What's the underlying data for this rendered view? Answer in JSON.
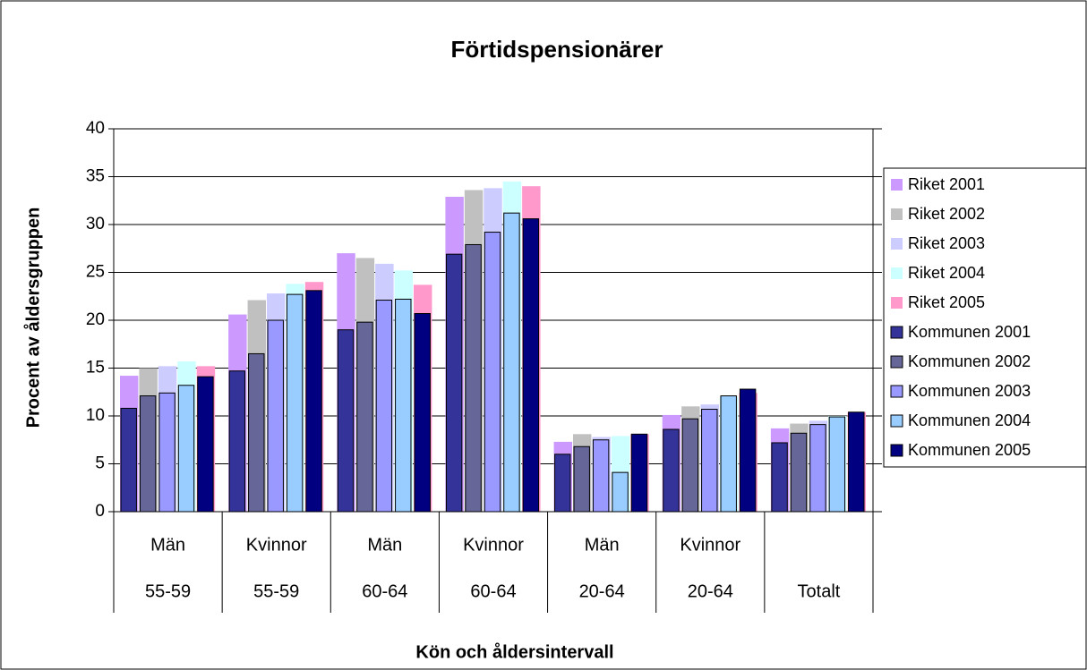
{
  "chart_data": {
    "type": "bar",
    "title": "Förtidspensionärer",
    "y_label": "Procent av åldersgruppen",
    "x_label": "Kön och åldersintervall",
    "categories": [
      "Män",
      "Kvinnor",
      "Män",
      "Kvinnor",
      "Män",
      "Kvinnor",
      null
    ],
    "groups": [
      "55-59",
      "55-59",
      "60-64",
      "60-64",
      "20-64",
      "20-64",
      "Totalt"
    ],
    "ylim": [
      0,
      40
    ],
    "yticks": [
      0,
      5,
      10,
      15,
      20,
      25,
      30,
      35,
      40
    ],
    "grid": true,
    "series": [
      {
        "name": "Riket 2001",
        "color": "#cc99ff",
        "values": [
          14.2,
          20.6,
          27.0,
          32.9,
          7.3,
          10.1,
          8.7
        ]
      },
      {
        "name": "Riket 2002",
        "color": "#c0c0c0",
        "values": [
          15.0,
          22.1,
          26.5,
          33.6,
          8.1,
          11.0,
          9.2
        ]
      },
      {
        "name": "Riket 2003",
        "color": "#ccccff",
        "values": [
          15.2,
          22.8,
          25.9,
          33.8,
          7.8,
          11.2,
          9.5
        ]
      },
      {
        "name": "Riket 2004",
        "color": "#ccffff",
        "values": [
          15.7,
          23.8,
          25.2,
          34.5,
          7.9,
          12.0,
          10.0
        ]
      },
      {
        "name": "Riket 2005",
        "color": "#ff99cc",
        "values": [
          15.2,
          24.0,
          23.7,
          34.0,
          8.1,
          12.4,
          10.4
        ]
      },
      {
        "name": "Kommunen 2001",
        "color": "#333399",
        "values": [
          10.8,
          14.7,
          19.0,
          26.9,
          6.0,
          8.6,
          7.2
        ]
      },
      {
        "name": "Kommunen 2002",
        "color": "#666699",
        "values": [
          12.1,
          16.5,
          19.8,
          27.9,
          6.8,
          9.7,
          8.2
        ]
      },
      {
        "name": "Kommunen 2003",
        "color": "#9999ff",
        "values": [
          12.4,
          20.0,
          22.1,
          29.2,
          7.5,
          10.7,
          9.1
        ]
      },
      {
        "name": "Kommunen 2004",
        "color": "#99ccff",
        "values": [
          13.2,
          22.7,
          22.2,
          31.2,
          4.1,
          12.1,
          9.9
        ]
      },
      {
        "name": "Kommunen 2005",
        "color": "#000080",
        "values": [
          14.1,
          23.1,
          20.7,
          30.6,
          8.1,
          12.8,
          10.4
        ]
      }
    ]
  }
}
